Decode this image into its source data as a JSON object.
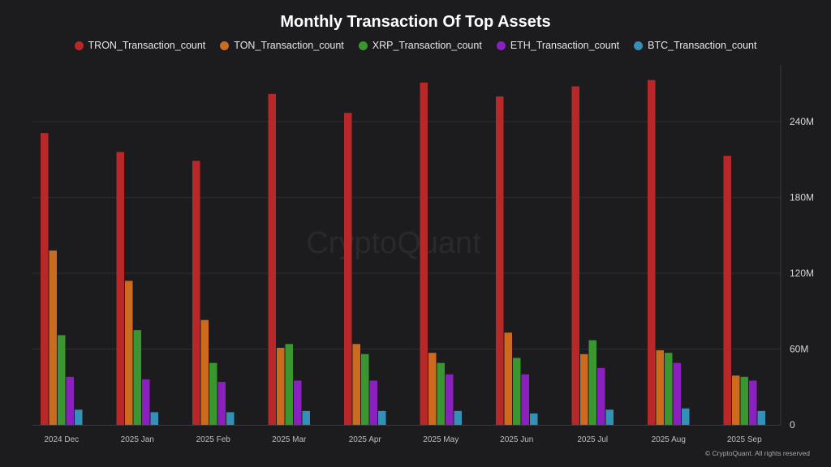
{
  "chart_data": {
    "type": "bar",
    "title": "Monthly Transaction Of Top Assets",
    "categories": [
      "2024 Dec",
      "2025 Jan",
      "2025 Feb",
      "2025 Mar",
      "2025 Apr",
      "2025 May",
      "2025 Jun",
      "2025 Jul",
      "2025 Aug",
      "2025 Sep"
    ],
    "series": [
      {
        "name": "TRON_Transaction_count",
        "color": "#b82828",
        "values": [
          231,
          216,
          209,
          262,
          247,
          271,
          260,
          268,
          273,
          213
        ]
      },
      {
        "name": "TON_Transaction_count",
        "color": "#cc6b1e",
        "values": [
          138,
          114,
          83,
          61,
          64,
          57,
          73,
          56,
          59,
          39
        ]
      },
      {
        "name": "XRP_Transaction_count",
        "color": "#3a962e",
        "values": [
          71,
          75,
          49,
          64,
          56,
          49,
          53,
          67,
          57,
          38
        ]
      },
      {
        "name": "ETH_Transaction_count",
        "color": "#8a20bd",
        "values": [
          38,
          36,
          34,
          35,
          35,
          40,
          40,
          45,
          49,
          35
        ]
      },
      {
        "name": "BTC_Transaction_count",
        "color": "#3391b8",
        "values": [
          12,
          10,
          10,
          11,
          11,
          11,
          9,
          12,
          13,
          11
        ]
      }
    ],
    "ylim": [
      0,
      285
    ],
    "y_ticks": [
      0,
      60,
      120,
      180,
      240
    ],
    "y_tick_labels": [
      "0",
      "60M",
      "120M",
      "180M",
      "240M"
    ],
    "y_axis_side": "right",
    "grid": true,
    "legend_placement": "top-center",
    "watermark": "CryptoQuant"
  },
  "footer": {
    "copyright": "© CryptoQuant. All rights reserved"
  }
}
